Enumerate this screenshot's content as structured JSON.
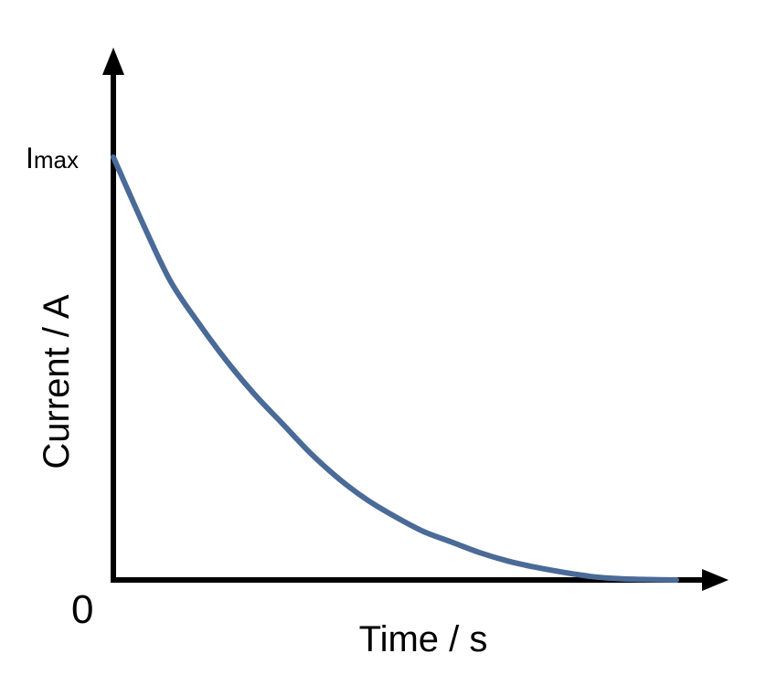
{
  "chart_data": {
    "type": "line",
    "title": "",
    "xlabel": "Time / s",
    "ylabel": "Current / A",
    "y_ticks": {
      "top_label_main": "I",
      "top_label_sub": "max",
      "origin_label": "0"
    },
    "series": [
      {
        "values_note": "",
        "x": [
          0,
          0.05,
          0.1,
          0.15,
          0.2,
          0.25,
          0.3,
          0.35,
          0.4,
          0.45,
          0.5,
          0.55,
          0.6,
          0.65,
          0.7,
          0.75,
          0.8,
          0.85,
          0.9,
          0.95,
          1.0
        ],
        "y": [
          1.0,
          0.85,
          0.71,
          0.61,
          0.52,
          0.44,
          0.37,
          0.3,
          0.24,
          0.19,
          0.15,
          0.115,
          0.09,
          0.065,
          0.045,
          0.03,
          0.018,
          0.008,
          0.003,
          0.001,
          0.0
        ]
      }
    ],
    "xlim": [
      0,
      1.0
    ],
    "ylim": [
      0,
      1.0
    ],
    "grid": false,
    "line_color": "#4a6a97",
    "axis_color": "#000000"
  }
}
